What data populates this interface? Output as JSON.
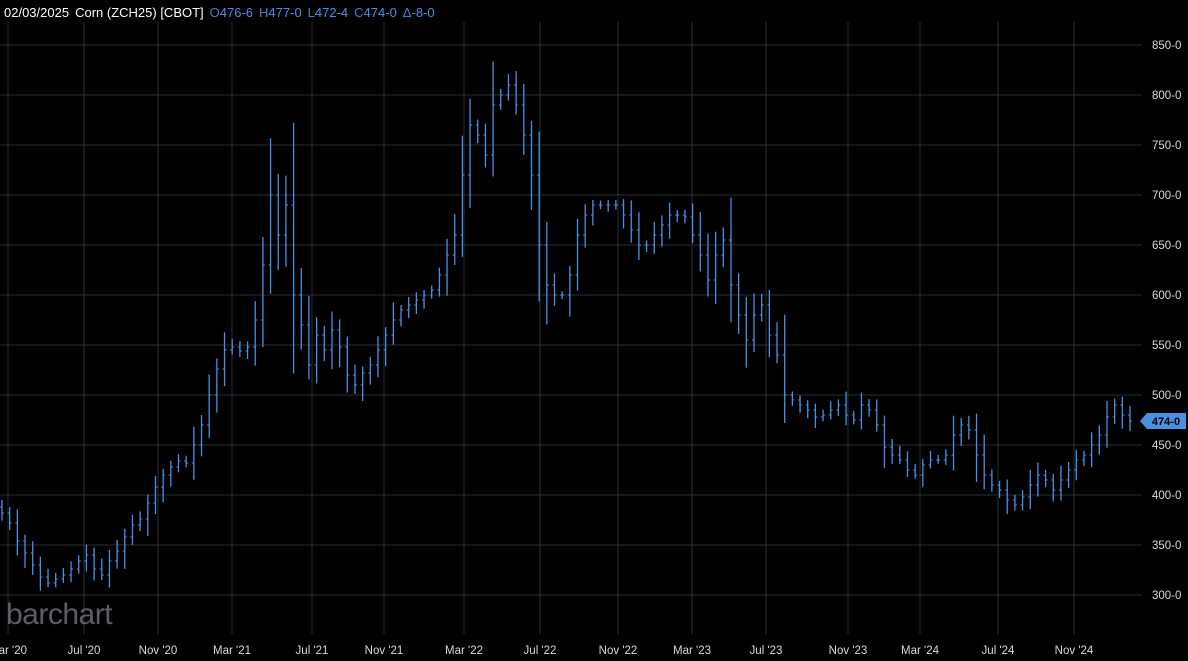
{
  "header": {
    "date": "02/03/2025",
    "symbol": "Corn (ZCH25) [CBOT]",
    "open_label": "O",
    "open": "476-6",
    "high_label": "H",
    "high": "477-0",
    "low_label": "L",
    "low": "472-4",
    "close_label": "C",
    "close": "474-0",
    "change_label": "Δ",
    "change": "-8-0"
  },
  "logo_text": "barchart",
  "colors": {
    "background": "#000000",
    "bars": "#4a90e2",
    "grid": "#2a2f36",
    "last_price_badge": "#4a90e2"
  },
  "chart_data": {
    "type": "ohlc",
    "y_ticks": [
      "300-0",
      "350-0",
      "400-0",
      "450-0",
      "500-0",
      "550-0",
      "600-0",
      "650-0",
      "700-0",
      "750-0",
      "800-0",
      "850-0"
    ],
    "ylim": [
      300,
      850
    ],
    "x_ticks": [
      "Mar '20",
      "Jul '20",
      "Nov '20",
      "Mar '21",
      "Jul '21",
      "Nov '21",
      "Mar '22",
      "Jul '22",
      "Nov '22",
      "Mar '23",
      "Jul '23",
      "Nov '23",
      "Mar '24",
      "Jul '24",
      "Nov '24"
    ],
    "last_price_label": "474-0",
    "last_price": 474,
    "grid": true,
    "closes": [
      382,
      372,
      354,
      342,
      330,
      318,
      312,
      316,
      320,
      326,
      334,
      340,
      326,
      320,
      334,
      344,
      358,
      370,
      376,
      392,
      408,
      420,
      428,
      434,
      432,
      450,
      470,
      500,
      526,
      545,
      548,
      544,
      548,
      575,
      630,
      700,
      660,
      690,
      600,
      570,
      530,
      560,
      545,
      565,
      548,
      520,
      510,
      522,
      530,
      545,
      560,
      575,
      585,
      590,
      595,
      600,
      605,
      620,
      640,
      660,
      720,
      770,
      760,
      740,
      790,
      800,
      810,
      790,
      760,
      720,
      650,
      610,
      600,
      600,
      620,
      660,
      680,
      690,
      690,
      690,
      690,
      680,
      665,
      650,
      650,
      660,
      670,
      680,
      680,
      678,
      660,
      640,
      615,
      640,
      655,
      610,
      580,
      555,
      580,
      590,
      560,
      540,
      500,
      495,
      490,
      485,
      478,
      480,
      485,
      490,
      480,
      475,
      490,
      485,
      470,
      448,
      440,
      435,
      425,
      420,
      430,
      435,
      435,
      440,
      460,
      470,
      465,
      440,
      420,
      410,
      405,
      395,
      390,
      398,
      410,
      420,
      415,
      405,
      415,
      425,
      435,
      440,
      450,
      460,
      478,
      490,
      480,
      474
    ]
  }
}
